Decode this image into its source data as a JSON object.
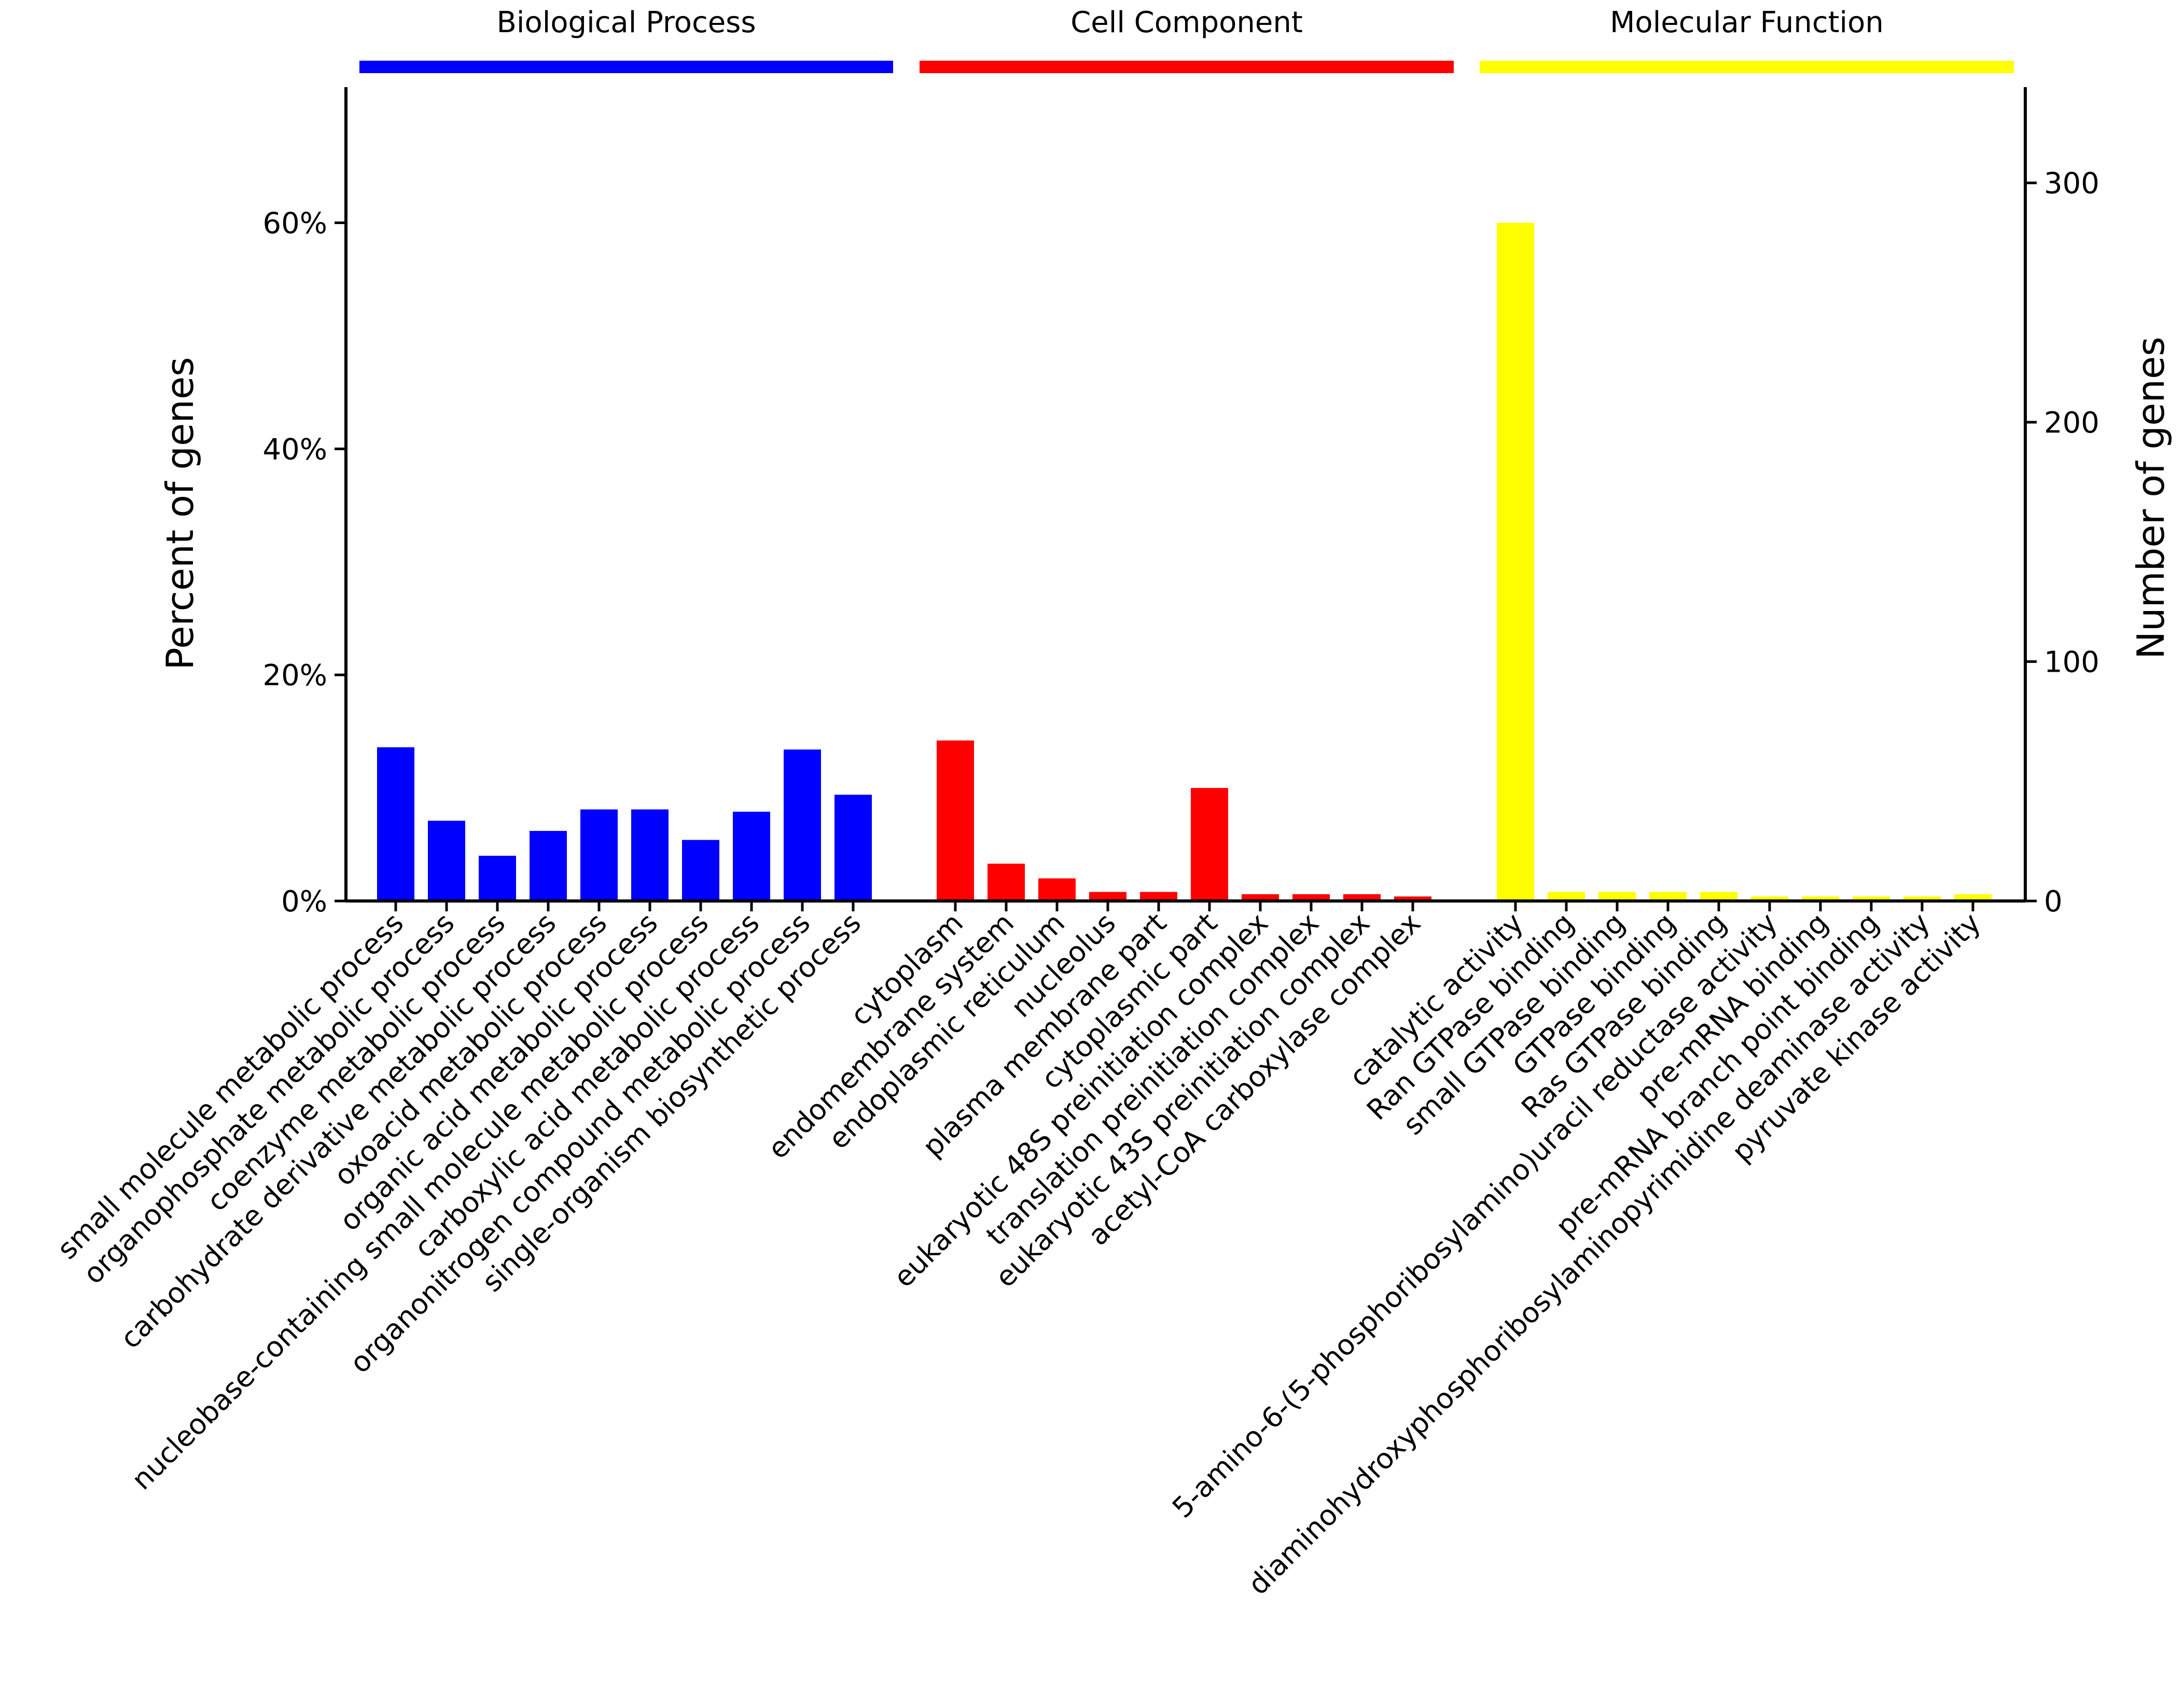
{
  "chart_data": {
    "type": "bar",
    "ylabel_left": "Percent of genes",
    "ylabel_right": "Number of genes",
    "left_axis": {
      "range": [
        0,
        72
      ],
      "ticks": [
        0,
        20,
        40,
        60
      ],
      "tick_labels": [
        "0%",
        "20%",
        "40%",
        "60%"
      ]
    },
    "right_axis": {
      "range": [
        0,
        340
      ],
      "ticks": [
        0,
        100,
        200,
        300
      ],
      "tick_labels": [
        "0",
        "100",
        "200",
        "300"
      ]
    },
    "grid": false,
    "groups": [
      {
        "name": "Biological Process",
        "color": "#0000ff",
        "categories": [
          "small molecule metabolic process",
          "organophosphate metabolic process",
          "coenzyme metabolic process",
          "carbohydrate derivative metabolic process",
          "oxoacid metabolic process",
          "organic acid metabolic process",
          "nucleobase-containing small molecule metabolic process",
          "carboxylic acid metabolic process",
          "organonitrogen compound metabolic process",
          "single-organism biosynthetic process"
        ],
        "values": [
          13.6,
          7.1,
          4.0,
          6.2,
          8.1,
          8.1,
          5.4,
          7.9,
          13.4,
          9.4
        ]
      },
      {
        "name": "Cell Component",
        "color": "#ff0000",
        "categories": [
          "cytoplasm",
          "endomembrane system",
          "endoplasmic reticulum",
          "nucleolus",
          "plasma membrane part",
          "cytoplasmic part",
          "eukaryotic 48S preinitiation complex",
          "translation preinitiation complex",
          "eukaryotic 43S preinitiation complex",
          "acetyl-CoA carboxylase complex"
        ],
        "values": [
          14.2,
          3.3,
          2.0,
          0.8,
          0.8,
          10.0,
          0.6,
          0.6,
          0.6,
          0.4
        ]
      },
      {
        "name": "Molecular Function",
        "color": "#ffff00",
        "categories": [
          "catalytic activity",
          "Ran GTPase binding",
          "small GTPase binding",
          "GTPase binding",
          "Ras GTPase binding",
          "5-amino-6-(5-phosphoribosylamino)uracil reductase activity",
          "pre-mRNA binding",
          "pre-mRNA branch point binding",
          "diaminohydroxyphosphoribosylaminopyrimidine deaminase activity",
          "pyruvate kinase activity"
        ],
        "values": [
          60.0,
          0.8,
          0.8,
          0.8,
          0.8,
          0.4,
          0.4,
          0.4,
          0.4,
          0.6
        ]
      }
    ]
  }
}
